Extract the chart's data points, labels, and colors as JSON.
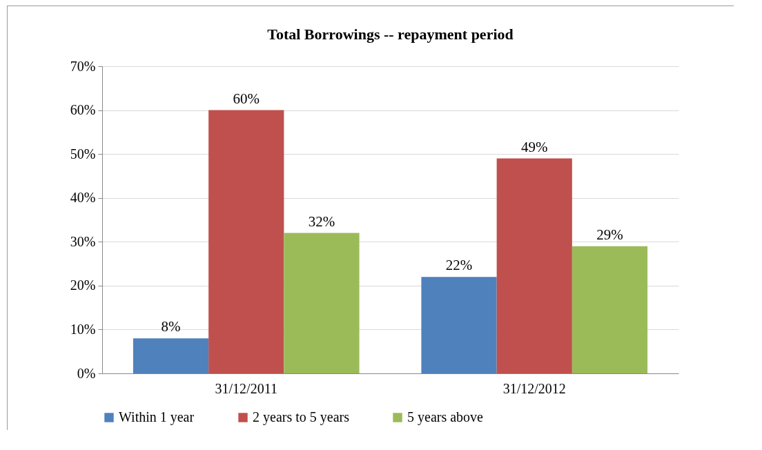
{
  "chart_data": {
    "type": "bar",
    "title": "Total Borrowings -- repayment period",
    "categories": [
      "31/12/2011",
      "31/12/2012"
    ],
    "series": [
      {
        "name": "Within 1 year",
        "color": "#4f81bd",
        "values": [
          8,
          22
        ],
        "value_labels": [
          "8%",
          "22%"
        ]
      },
      {
        "name": "2 years to 5 years",
        "color": "#c0504d",
        "values": [
          60,
          49
        ],
        "value_labels": [
          "60%",
          "49%"
        ]
      },
      {
        "name": "5 years above",
        "color": "#9bbb59",
        "values": [
          32,
          29
        ],
        "value_labels": [
          "32%",
          "29%"
        ]
      }
    ],
    "ylim": [
      0,
      70
    ],
    "yticks": [
      {
        "value": 0,
        "label": "0%"
      },
      {
        "value": 10,
        "label": "10%"
      },
      {
        "value": 20,
        "label": "20%"
      },
      {
        "value": 30,
        "label": "30%"
      },
      {
        "value": 40,
        "label": "40%"
      },
      {
        "value": 50,
        "label": "50%"
      },
      {
        "value": 60,
        "label": "60%"
      },
      {
        "value": 70,
        "label": "70%"
      }
    ],
    "grid": "y",
    "legend": "bottom"
  }
}
